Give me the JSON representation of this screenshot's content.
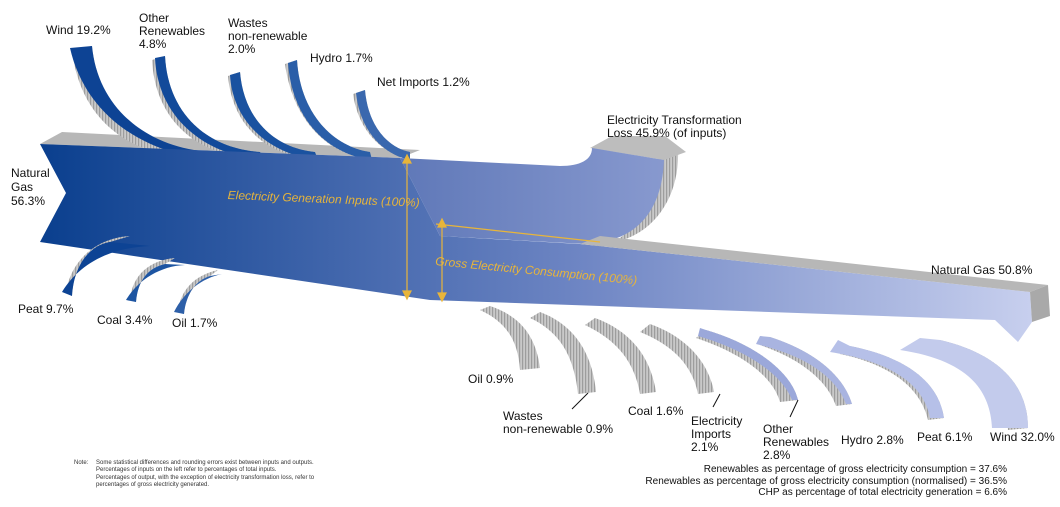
{
  "colors": {
    "navy": "#0a3f8e",
    "periwinkle": "#c7cfee",
    "grey": "#a5a5a5",
    "grey_light": "#d3d3d3",
    "gold": "#e8b53a"
  },
  "diagram_data": {
    "type": "sankey",
    "inputs": [
      {
        "name": "Natural\nGas",
        "value": "56.3%"
      },
      {
        "name": "Wind",
        "value": "19.2%"
      },
      {
        "name": "Other\nRenewables",
        "value": "4.8%"
      },
      {
        "name": "Wastes\nnon-renewable",
        "value": "2.0%"
      },
      {
        "name": "Hydro",
        "value": "1.7%"
      },
      {
        "name": "Net Imports",
        "value": "1.2%"
      },
      {
        "name": "Peat",
        "value": "9.7%"
      },
      {
        "name": "Coal",
        "value": "3.4%"
      },
      {
        "name": "Oil",
        "value": "1.7%"
      }
    ],
    "loss": {
      "name": "Electricity Transformation\nLoss",
      "value": "45.9% (of inputs)"
    },
    "outputs": [
      {
        "name": "Natural Gas",
        "value": "50.8%"
      },
      {
        "name": "Oil",
        "value": "0.9%"
      },
      {
        "name": "Wastes\nnon-renewable",
        "value": "0.9%"
      },
      {
        "name": "Coal",
        "value": "1.6%"
      },
      {
        "name": "Electricity\nImports",
        "value": "2.1%"
      },
      {
        "name": "Other\nRenewables",
        "value": "2.8%"
      },
      {
        "name": "Hydro",
        "value": "2.8%"
      },
      {
        "name": "Peat",
        "value": "6.1%"
      },
      {
        "name": "Wind",
        "value": "32.0%"
      }
    ]
  },
  "labels": {
    "wind_in": "Wind 19.2%",
    "other_ren_in_1": "Other",
    "other_ren_in_2": "Renewables",
    "other_ren_in_3": "4.8%",
    "wastes_in_1": "Wastes",
    "wastes_in_2": "non-renewable",
    "wastes_in_3": "2.0%",
    "hydro_in": "Hydro 1.7%",
    "net_imports_in": "Net Imports 1.2%",
    "natural_gas_in_1": "Natural",
    "natural_gas_in_2": "Gas",
    "natural_gas_in_3": "56.3%",
    "peat_in": "Peat 9.7%",
    "coal_in": "Coal 3.4%",
    "oil_in": "Oil 1.7%",
    "loss_1": "Electricity Transformation",
    "loss_2": "Loss 45.9% (of inputs)",
    "gen_inputs": "Electricity Generation Inputs (100%)",
    "gross_consumption": "Gross Electricity Consumption (100%)",
    "natural_gas_out": "Natural Gas 50.8%",
    "oil_out": "Oil 0.9%",
    "wastes_out_1": "Wastes",
    "wastes_out_2": "non-renewable 0.9%",
    "coal_out": "Coal 1.6%",
    "elec_imports_out_1": "Electricity",
    "elec_imports_out_2": "Imports",
    "elec_imports_out_3": "2.1%",
    "other_ren_out_1": "Other",
    "other_ren_out_2": "Renewables",
    "other_ren_out_3": "2.8%",
    "hydro_out": "Hydro 2.8%",
    "peat_out": "Peat 6.1%",
    "wind_out": "Wind 32.0%"
  },
  "note": {
    "key": "Note:",
    "lines": [
      "Some statistical differences and rounding errors exist between inputs and outputs.",
      "Percentages of inputs on the left refer to percentages of total inputs.",
      "Percentages of output, with the exception of electricity transformation loss, refer to",
      "percentages of gross electricity generated."
    ]
  },
  "stats": [
    "Renewables as percentage of gross electricity consumption  =  37.6%",
    "Renewables as percentage of gross electricity consumption (normalised)  =  36.5%",
    "CHP as percentage of total electricity generation  =    6.6%"
  ]
}
